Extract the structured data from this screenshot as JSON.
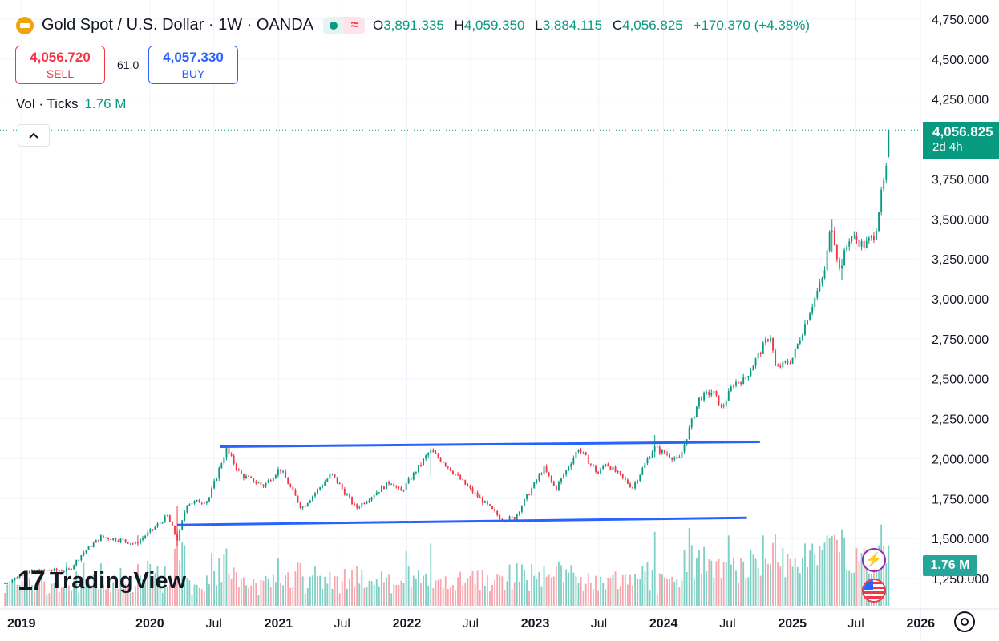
{
  "header": {
    "title": "Gold Spot / U.S. Dollar · 1W · OANDA",
    "ohlc": [
      {
        "k": "O",
        "v": "3,891.335"
      },
      {
        "k": "H",
        "v": "4,059.350"
      },
      {
        "k": "L",
        "v": "3,884.115"
      },
      {
        "k": "C",
        "v": "4,056.825"
      }
    ],
    "change": "+170.370 (+4.38%)",
    "wave_glyph": "≈"
  },
  "trade": {
    "sell_price": "4,056.720",
    "sell_label": "SELL",
    "spread": "61.0",
    "buy_price": "4,057.330",
    "buy_label": "BUY"
  },
  "volume_legend": {
    "label": "Vol · Ticks",
    "value": "1.76 M"
  },
  "last_price": {
    "price": "4,056.825",
    "countdown": "2d 4h"
  },
  "volume_last": "1.76 M",
  "brand": {
    "mark": "17",
    "name": "TradingView"
  },
  "colors": {
    "up": "#089981",
    "down": "#f23645",
    "trendline": "#2962ff",
    "vol_up": "#7fd0c4",
    "vol_down": "#f7a6ad",
    "grid": "#f0f3fa",
    "accent": "#089981"
  },
  "icons": [
    "gold-logo-icon",
    "chevron-up-icon",
    "flash-icon",
    "us-flag-icon",
    "settings-icon"
  ],
  "chart_data": {
    "type": "candlestick",
    "title": "Gold Spot / U.S. Dollar · 1W · OANDA",
    "timeframe": "1W",
    "x_axis_ticks": [
      "2019",
      "2020",
      "Jul",
      "2021",
      "Jul",
      "2022",
      "Jul",
      "2023",
      "Jul",
      "2024",
      "Jul",
      "2025",
      "Jul",
      "2026"
    ],
    "y_axis_ticks": [
      "4,750.000",
      "4,500.000",
      "4,250.000",
      "3,750.000",
      "3,500.000",
      "3,250.000",
      "3,000.000",
      "2,750.000",
      "2,500.000",
      "2,250.000",
      "2,000.000",
      "1,750.000",
      "1,500.000",
      "1,250.000"
    ],
    "y_range": [
      1150,
      4800
    ],
    "x_range": [
      "2018-11-01",
      "2026-02-15"
    ],
    "price_path": [
      [
        "2018-11-15",
        1220
      ],
      [
        "2019-01-15",
        1290
      ],
      [
        "2019-03-15",
        1300
      ],
      [
        "2019-05-15",
        1300
      ],
      [
        "2019-06-25",
        1410
      ],
      [
        "2019-08-15",
        1510
      ],
      [
        "2019-10-15",
        1490
      ],
      [
        "2019-11-20",
        1465
      ],
      [
        "2020-01-10",
        1560
      ],
      [
        "2020-02-20",
        1640
      ],
      [
        "2020-03-20",
        1490
      ],
      [
        "2020-04-15",
        1720
      ],
      [
        "2020-06-15",
        1740
      ],
      [
        "2020-08-05",
        2060
      ],
      [
        "2020-09-15",
        1900
      ],
      [
        "2020-11-20",
        1830
      ],
      [
        "2021-01-05",
        1940
      ],
      [
        "2021-03-08",
        1690
      ],
      [
        "2021-06-01",
        1905
      ],
      [
        "2021-08-09",
        1690
      ],
      [
        "2021-11-16",
        1860
      ],
      [
        "2021-12-15",
        1790
      ],
      [
        "2022-03-08",
        2050
      ],
      [
        "2022-04-15",
        1980
      ],
      [
        "2022-06-15",
        1840
      ],
      [
        "2022-09-28",
        1620
      ],
      [
        "2022-11-03",
        1630
      ],
      [
        "2023-01-25",
        1940
      ],
      [
        "2023-02-28",
        1810
      ],
      [
        "2023-05-04",
        2065
      ],
      [
        "2023-06-29",
        1905
      ],
      [
        "2023-07-20",
        1975
      ],
      [
        "2023-10-05",
        1820
      ],
      [
        "2023-12-04",
        2070
      ],
      [
        "2024-02-14",
        1990
      ],
      [
        "2024-04-12",
        2380
      ],
      [
        "2024-05-20",
        2420
      ],
      [
        "2024-06-15",
        2310
      ],
      [
        "2024-07-17",
        2470
      ],
      [
        "2024-08-20",
        2500
      ],
      [
        "2024-10-30",
        2780
      ],
      [
        "2024-11-15",
        2560
      ],
      [
        "2024-12-31",
        2620
      ],
      [
        "2025-02-24",
        2950
      ],
      [
        "2025-04-01",
        3150
      ],
      [
        "2025-04-22",
        3480
      ],
      [
        "2025-05-15",
        3180
      ],
      [
        "2025-06-15",
        3400
      ],
      [
        "2025-07-25",
        3330
      ],
      [
        "2025-08-25",
        3410
      ],
      [
        "2025-09-08",
        3620
      ],
      [
        "2025-09-22",
        3770
      ],
      [
        "2025-10-03",
        3890
      ],
      [
        "2025-10-08",
        4056.825
      ]
    ],
    "notable_wicks": [
      [
        "2019-11-25",
        1455,
        1520
      ],
      [
        "2020-03-19",
        1455,
        1705
      ],
      [
        "2020-08-07",
        1990,
        2075
      ],
      [
        "2022-03-07",
        1895,
        2070
      ],
      [
        "2023-12-04",
        2010,
        2148
      ],
      [
        "2025-04-21",
        3290,
        3500
      ],
      [
        "2025-05-19",
        3120,
        3250
      ],
      [
        "2025-10-06",
        3884.115,
        4059.35
      ]
    ],
    "volume": {
      "name": "Vol · Ticks",
      "last": "1.76 M"
    },
    "trendlines": [
      {
        "from": [
          "2020-07-20",
          2075
        ],
        "to": [
          "2024-10-01",
          2105
        ]
      },
      {
        "from": [
          "2020-03-20",
          1585
        ],
        "to": [
          "2024-08-25",
          1630
        ]
      }
    ],
    "last_price": 4056.825,
    "grid": true,
    "legend": "top-left"
  }
}
